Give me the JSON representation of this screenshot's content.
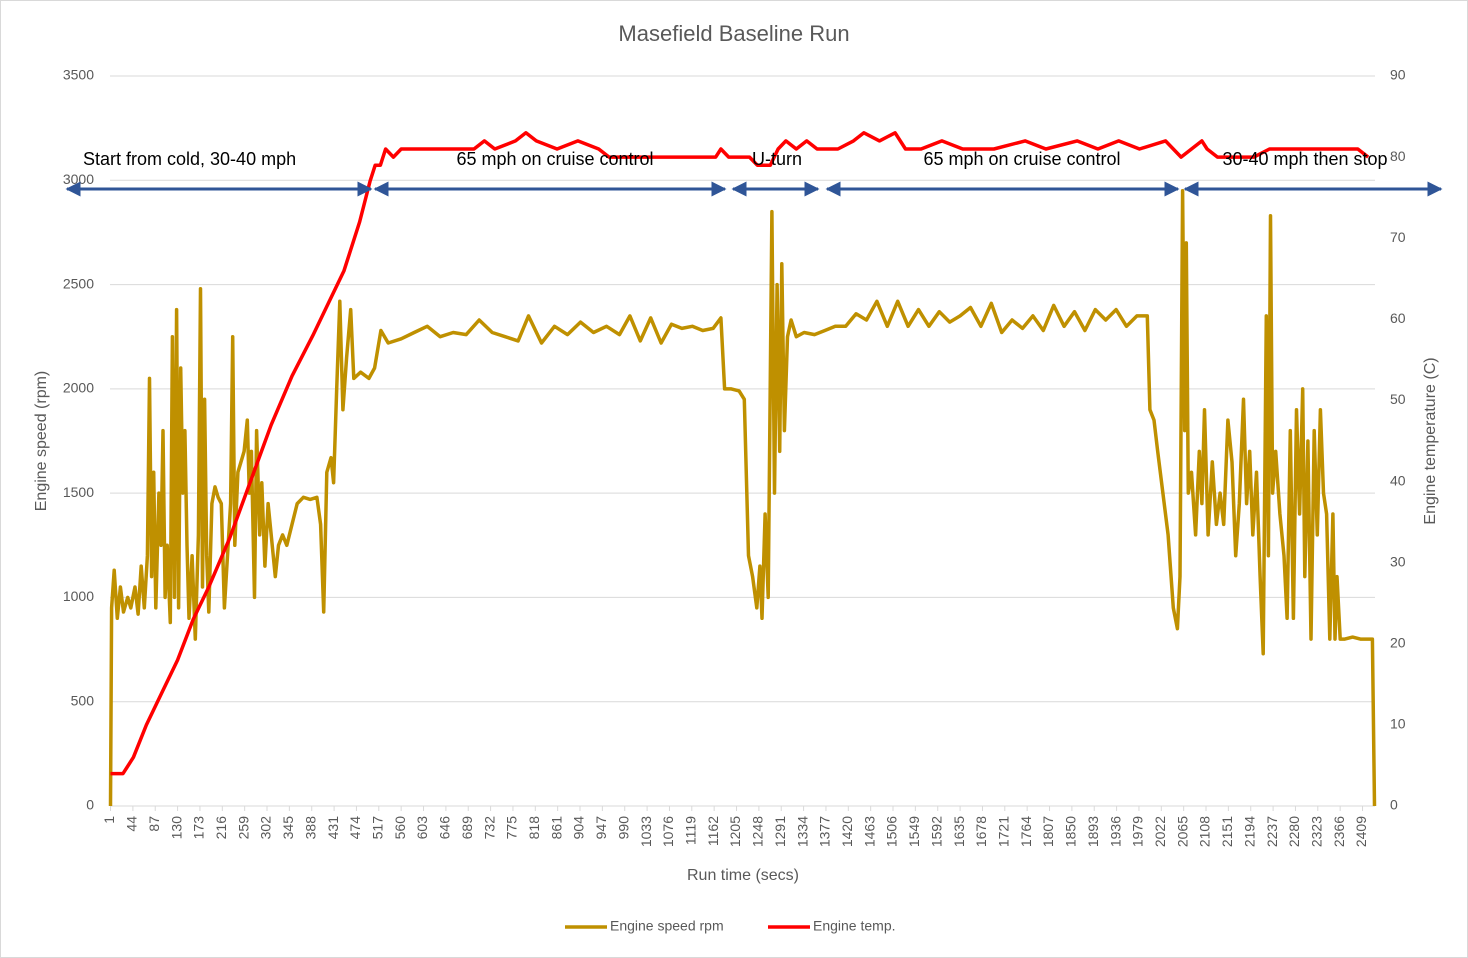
{
  "chart_data": {
    "type": "line",
    "title": "Masefield Baseline Run",
    "x_label": "Run time (secs)",
    "y_label": "Engine speed (rpm)",
    "y2_label": "Engine temperature (C)",
    "annotations": [
      "Start from cold, 30-40 mph",
      "65 mph on cruise control",
      "U-turn",
      "65 mph on cruise control",
      "30-40 mph then stop"
    ],
    "xlim": [
      0,
      2433
    ],
    "xticks": [
      1,
      44,
      87,
      130,
      173,
      216,
      259,
      302,
      345,
      388,
      431,
      474,
      517,
      560,
      603,
      646,
      689,
      732,
      775,
      818,
      861,
      904,
      947,
      990,
      1033,
      1076,
      1119,
      1162,
      1205,
      1248,
      1291,
      1334,
      1377,
      1420,
      1463,
      1506,
      1549,
      1592,
      1635,
      1678,
      1721,
      1764,
      1807,
      1850,
      1893,
      1936,
      1979,
      2022,
      2065,
      2108,
      2151,
      2194,
      2237,
      2280,
      2323,
      2366,
      2409
    ],
    "ylim": [
      0,
      3500
    ],
    "yticks": [
      0,
      500,
      1000,
      1500,
      2000,
      2500,
      3000,
      3500
    ],
    "y2lim": [
      0,
      90
    ],
    "y2ticks": [
      0,
      10,
      20,
      30,
      40,
      50,
      60,
      70,
      80,
      90
    ],
    "grid": true,
    "legend": "bottom",
    "series": [
      {
        "name": "Engine speed rpm",
        "color": "#bf9000",
        "x": [
          1,
          3,
          8,
          14,
          20,
          26,
          34,
          40,
          48,
          54,
          60,
          66,
          72,
          76,
          80,
          84,
          88,
          94,
          98,
          102,
          106,
          110,
          116,
          120,
          124,
          128,
          132,
          136,
          140,
          144,
          148,
          152,
          158,
          164,
          170,
          174,
          178,
          182,
          186,
          190,
          196,
          202,
          208,
          214,
          220,
          226,
          232,
          236,
          240,
          246,
          252,
          258,
          264,
          268,
          272,
          278,
          282,
          288,
          292,
          298,
          304,
          310,
          318,
          324,
          332,
          340,
          350,
          360,
          372,
          385,
          398,
          405,
          411,
          417,
          425,
          430,
          436,
          442,
          448,
          455,
          463,
          469,
          482,
          498,
          509,
          521,
          535,
          560,
          585,
          610,
          635,
          660,
          685,
          710,
          735,
          760,
          785,
          805,
          830,
          855,
          880,
          905,
          930,
          955,
          980,
          1000,
          1020,
          1040,
          1060,
          1080,
          1100,
          1120,
          1140,
          1160,
          1175,
          1182,
          1195,
          1210,
          1220,
          1228,
          1236,
          1244,
          1250,
          1254,
          1260,
          1266,
          1273,
          1278,
          1283,
          1288,
          1292,
          1297,
          1303,
          1310,
          1320,
          1335,
          1355,
          1375,
          1395,
          1415,
          1435,
          1455,
          1475,
          1495,
          1515,
          1535,
          1555,
          1575,
          1595,
          1615,
          1635,
          1655,
          1675,
          1695,
          1715,
          1735,
          1755,
          1775,
          1795,
          1815,
          1835,
          1855,
          1875,
          1895,
          1915,
          1935,
          1955,
          1975,
          1995,
          2000,
          2008,
          2015,
          2025,
          2035,
          2045,
          2053,
          2058,
          2063,
          2067,
          2070,
          2074,
          2080,
          2088,
          2095,
          2100,
          2105,
          2112,
          2120,
          2128,
          2135,
          2142,
          2150,
          2158,
          2165,
          2172,
          2180,
          2186,
          2192,
          2198,
          2205,
          2212,
          2218,
          2224,
          2228,
          2232,
          2236,
          2242,
          2250,
          2258,
          2264,
          2270,
          2276,
          2282,
          2288,
          2294,
          2298,
          2304,
          2310,
          2316,
          2322,
          2328,
          2334,
          2340,
          2346,
          2352,
          2356,
          2360,
          2366,
          2375,
          2390,
          2405,
          2420,
          2428,
          2432
        ],
        "values": [
          0,
          950,
          1130,
          900,
          1050,
          930,
          1000,
          950,
          1050,
          920,
          1150,
          950,
          1200,
          2050,
          1100,
          1600,
          950,
          1500,
          1250,
          1800,
          1000,
          1250,
          880,
          2250,
          1000,
          2380,
          950,
          2100,
          1500,
          1800,
          1250,
          900,
          1200,
          800,
          1300,
          2480,
          1050,
          1950,
          1200,
          930,
          1450,
          1530,
          1480,
          1450,
          950,
          1200,
          1450,
          2250,
          1250,
          1600,
          1650,
          1700,
          1850,
          1500,
          1700,
          1000,
          1800,
          1300,
          1550,
          1150,
          1450,
          1300,
          1100,
          1250,
          1300,
          1250,
          1350,
          1450,
          1480,
          1470,
          1480,
          1350,
          930,
          1600,
          1670,
          1550,
          2000,
          2420,
          1900,
          2150,
          2380,
          2050,
          2080,
          2050,
          2100,
          2280,
          2220,
          2240,
          2270,
          2300,
          2250,
          2270,
          2260,
          2330,
          2270,
          2250,
          2230,
          2350,
          2220,
          2300,
          2260,
          2320,
          2270,
          2300,
          2260,
          2350,
          2230,
          2340,
          2220,
          2310,
          2290,
          2300,
          2280,
          2290,
          2340,
          2000,
          2000,
          1990,
          1950,
          1200,
          1100,
          950,
          1150,
          900,
          1400,
          1000,
          2850,
          1500,
          2500,
          1700,
          2600,
          1800,
          2250,
          2330,
          2250,
          2270,
          2260,
          2280,
          2300,
          2300,
          2360,
          2330,
          2420,
          2300,
          2420,
          2300,
          2380,
          2300,
          2370,
          2320,
          2350,
          2390,
          2300,
          2410,
          2270,
          2330,
          2290,
          2350,
          2280,
          2400,
          2300,
          2370,
          2280,
          2380,
          2330,
          2380,
          2300,
          2350,
          2350,
          1900,
          1850,
          1700,
          1500,
          1300,
          950,
          850,
          1100,
          2950,
          1800,
          2700,
          1500,
          1600,
          1300,
          1700,
          1450,
          1900,
          1300,
          1650,
          1350,
          1500,
          1350,
          1850,
          1650,
          1200,
          1450,
          1950,
          1450,
          1700,
          1300,
          1600,
          1100,
          730,
          2350,
          1200,
          2830,
          1500,
          1700,
          1400,
          1200,
          900,
          1800,
          900,
          1900,
          1400,
          2000,
          1100,
          1750,
          800,
          1800,
          1300,
          1900,
          1500,
          1400,
          800,
          1400,
          800,
          1100,
          800,
          800,
          810,
          800,
          800,
          800,
          0
        ]
      },
      {
        "name": "Engine temp.",
        "color": "#ff0000",
        "axis": "y2",
        "x": [
          1,
          25,
          45,
          70,
          100,
          130,
          160,
          190,
          230,
          270,
          310,
          350,
          390,
          420,
          450,
          480,
          500,
          510,
          520,
          530,
          545,
          560,
          600,
          640,
          700,
          720,
          740,
          780,
          800,
          820,
          860,
          900,
          940,
          960,
          1000,
          1100,
          1165,
          1175,
          1190,
          1230,
          1245,
          1270,
          1285,
          1300,
          1320,
          1340,
          1360,
          1400,
          1430,
          1450,
          1480,
          1510,
          1530,
          1560,
          1600,
          1640,
          1700,
          1760,
          1800,
          1860,
          1900,
          1940,
          1980,
          2030,
          2060,
          2080,
          2100,
          2110,
          2130,
          2160,
          2200,
          2230,
          2300,
          2350,
          2400,
          2420
        ],
        "values": [
          4,
          4,
          6,
          10,
          14,
          18,
          23,
          27,
          33,
          40,
          47,
          53,
          58,
          62,
          66,
          72,
          77,
          79,
          79,
          81,
          80,
          81,
          81,
          81,
          81,
          82,
          81,
          82,
          83,
          82,
          81,
          82,
          81,
          80,
          80,
          80,
          80,
          81,
          80,
          80,
          79,
          79,
          81,
          82,
          81,
          82,
          81,
          81,
          82,
          83,
          82,
          83,
          81,
          81,
          82,
          81,
          81,
          82,
          81,
          82,
          81,
          82,
          81,
          82,
          80,
          81,
          82,
          81,
          80,
          80,
          80,
          81,
          81,
          81,
          81,
          80
        ]
      }
    ]
  }
}
